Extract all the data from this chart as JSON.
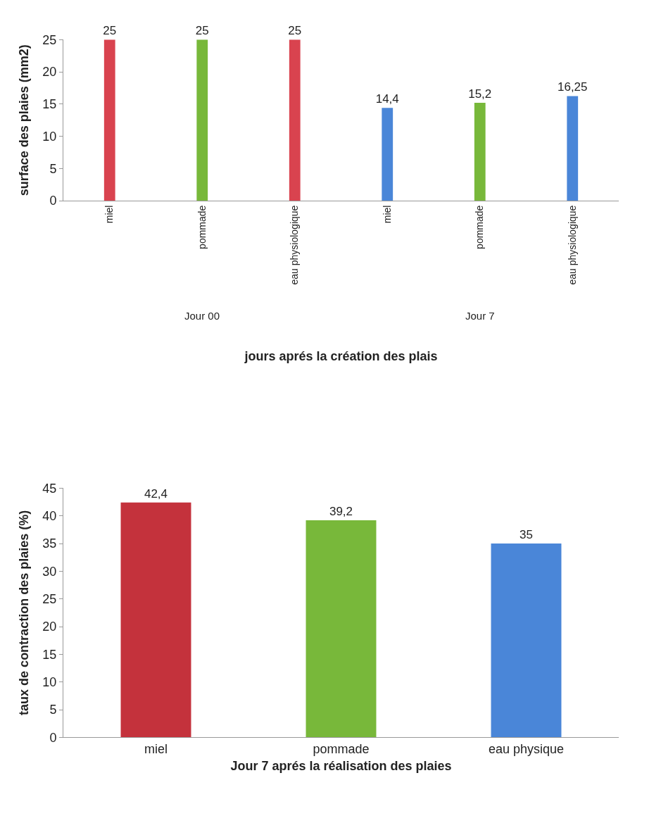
{
  "chart_data": [
    {
      "type": "bar",
      "xlabel": "jours aprés la création des plais",
      "ylabel": "surface des plaies (mm2)",
      "categories": [
        "miel",
        "pommade",
        "eau physiologique",
        "miel",
        "pommade",
        "eau physiologique"
      ],
      "values": [
        25,
        25,
        25,
        14.4,
        15.2,
        16.25
      ],
      "colors": [
        "#d9434f",
        "#78b83a",
        "#d9434f",
        "#4a86d8",
        "#78b83a",
        "#4a86d8"
      ],
      "value_labels": [
        "25",
        "25",
        "25",
        "14,4",
        "15,2",
        "16,25"
      ],
      "annotations": [
        "Jour 00",
        "Jour 7"
      ],
      "ylim": [
        0,
        25
      ],
      "yticks": [
        0,
        5,
        10,
        15,
        20,
        25
      ]
    },
    {
      "type": "bar",
      "xlabel": "Jour 7 aprés la réalisation des plaies",
      "ylabel": "taux de contraction des plaies (%)",
      "categories": [
        "miel",
        "pommade",
        "eau physique"
      ],
      "values": [
        42.4,
        39.2,
        35
      ],
      "colors": [
        "#c4323c",
        "#78b83a",
        "#4a86d8"
      ],
      "value_labels": [
        "42,4",
        "39,2",
        "35"
      ],
      "ylim": [
        0,
        45
      ],
      "yticks": [
        0,
        5,
        10,
        15,
        20,
        25,
        30,
        35,
        40,
        45
      ]
    }
  ]
}
